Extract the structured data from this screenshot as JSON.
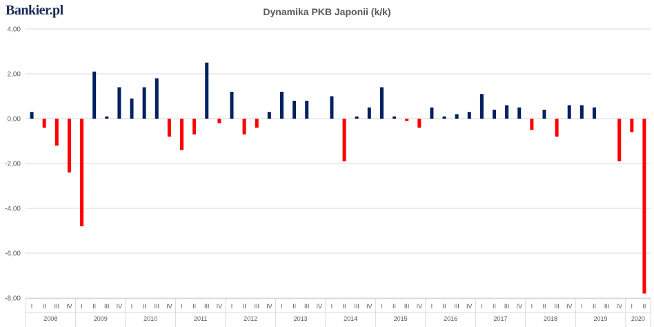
{
  "logo": {
    "text": "Bankier.pl"
  },
  "colors": {
    "positive": "#002060",
    "negative": "#ff0000",
    "grid": "#d9d9d9",
    "axis_text": "#595959"
  },
  "chart_data": {
    "type": "bar",
    "title": "Dynamika PKB Japonii (k/k)",
    "xlabel": "",
    "ylabel": "",
    "ylim": [
      -8,
      4
    ],
    "yticks": [
      4,
      2,
      0,
      -2,
      -4,
      -6,
      -8
    ],
    "ytick_labels": [
      "4,00",
      "2,00",
      "0,00",
      "-2,00",
      "-4,00",
      "-6,00",
      "-8,00"
    ],
    "grid": true,
    "legend": "none",
    "quarter_labels": [
      "I",
      "II",
      "III",
      "IV"
    ],
    "years": [
      {
        "year": "2008",
        "values": [
          0.3,
          -0.4,
          -1.2,
          -2.4
        ]
      },
      {
        "year": "2009",
        "values": [
          -4.8,
          2.1,
          0.1,
          1.4
        ]
      },
      {
        "year": "2010",
        "values": [
          0.9,
          1.4,
          1.8,
          -0.8
        ]
      },
      {
        "year": "2011",
        "values": [
          -1.4,
          -0.7,
          2.5,
          -0.2
        ]
      },
      {
        "year": "2012",
        "values": [
          1.2,
          -0.7,
          -0.4,
          0.3
        ]
      },
      {
        "year": "2013",
        "values": [
          1.2,
          0.8,
          0.8,
          0.0
        ]
      },
      {
        "year": "2014",
        "values": [
          1.0,
          -1.9,
          0.1,
          0.5
        ]
      },
      {
        "year": "2015",
        "values": [
          1.4,
          0.1,
          -0.1,
          -0.4
        ]
      },
      {
        "year": "2016",
        "values": [
          0.5,
          0.1,
          0.2,
          0.3
        ]
      },
      {
        "year": "2017",
        "values": [
          1.1,
          0.4,
          0.6,
          0.5
        ]
      },
      {
        "year": "2018",
        "values": [
          -0.5,
          0.4,
          -0.8,
          0.6
        ]
      },
      {
        "year": "2019",
        "values": [
          0.6,
          0.5,
          0.0,
          -1.9
        ]
      },
      {
        "year": "2020",
        "values": [
          -0.6,
          -7.8
        ]
      }
    ]
  }
}
